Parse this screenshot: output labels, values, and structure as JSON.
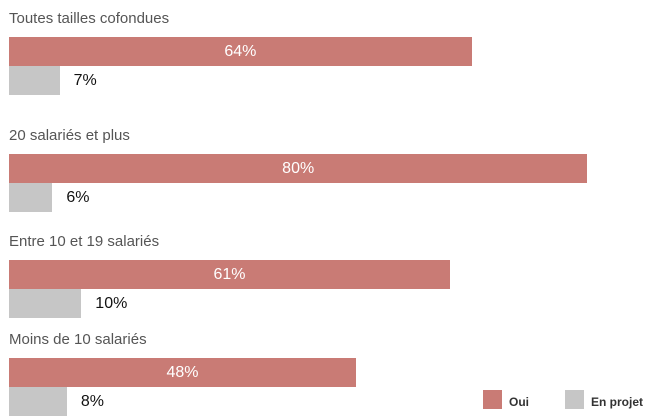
{
  "chart_data": {
    "type": "bar",
    "orientation": "horizontal",
    "categories": [
      "Toutes tailles cofondues",
      "20 salariés et plus",
      "Entre 10 et 19 salariés",
      "Moins de 10 salariés"
    ],
    "series": [
      {
        "name": "Oui",
        "values": [
          64,
          80,
          61,
          48
        ],
        "labels": [
          "64%",
          "80%",
          "61%",
          "48%"
        ],
        "color": "#c97b75"
      },
      {
        "name": "En projet",
        "values": [
          7,
          6,
          10,
          8
        ],
        "labels": [
          "7%",
          "6%",
          "10%",
          "8%"
        ],
        "color": "#c6c6c6"
      }
    ],
    "xlim": [
      0,
      100
    ],
    "grid": false,
    "legend_position": "bottom-right"
  }
}
